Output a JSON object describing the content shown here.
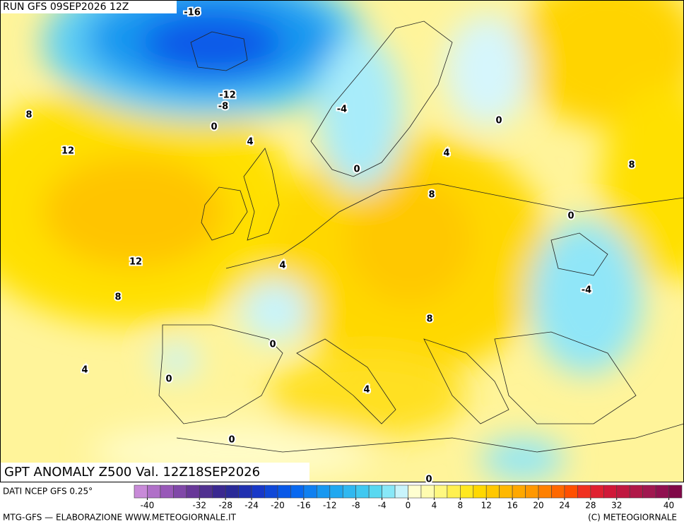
{
  "header": {
    "run": "RUN GFS 09SEP2026 12Z",
    "title": "GPT ANOMALY Z500 Val. 12Z18SEP2026"
  },
  "contour_labels": [
    -16,
    -12,
    -8,
    0,
    8,
    12,
    4,
    -4,
    0,
    0,
    4,
    8,
    8,
    0,
    -4,
    12,
    8,
    4,
    0,
    8,
    4,
    0,
    4,
    0,
    0
  ],
  "colorbar": {
    "range": [
      -42,
      42
    ],
    "colors": [
      "#c88ad8",
      "#b070c8",
      "#9858b8",
      "#8048a8",
      "#683898",
      "#503090",
      "#3a2890",
      "#2a2a98",
      "#2030b0",
      "#1838c8",
      "#1048d8",
      "#0858e8",
      "#0868f0",
      "#1080f0",
      "#1898f0",
      "#20a8f0",
      "#30b8f0",
      "#40c8f0",
      "#58d8f0",
      "#88e8f8",
      "#c8f4fc",
      "#ffffd0",
      "#fffcb0",
      "#fff880",
      "#fff050",
      "#ffe820",
      "#ffd800",
      "#ffc800",
      "#ffb800",
      "#ffa800",
      "#ff9800",
      "#ff8000",
      "#ff6800",
      "#ff5000",
      "#f03020",
      "#e02030",
      "#d01838",
      "#c01840",
      "#b01848",
      "#a01850",
      "#901050",
      "#800848"
    ],
    "ticks": [
      -40,
      -32,
      -28,
      -24,
      -20,
      -16,
      -12,
      -8,
      -4,
      0,
      4,
      8,
      12,
      16,
      20,
      24,
      28,
      32,
      40
    ]
  },
  "footer": {
    "source": "DATI NCEP GFS 0.25°",
    "credit": "MTG-GFS — ELABORAZIONE WWW.METEOGIORNALE.IT",
    "copyright": "(C) METEOGIORNALE"
  }
}
